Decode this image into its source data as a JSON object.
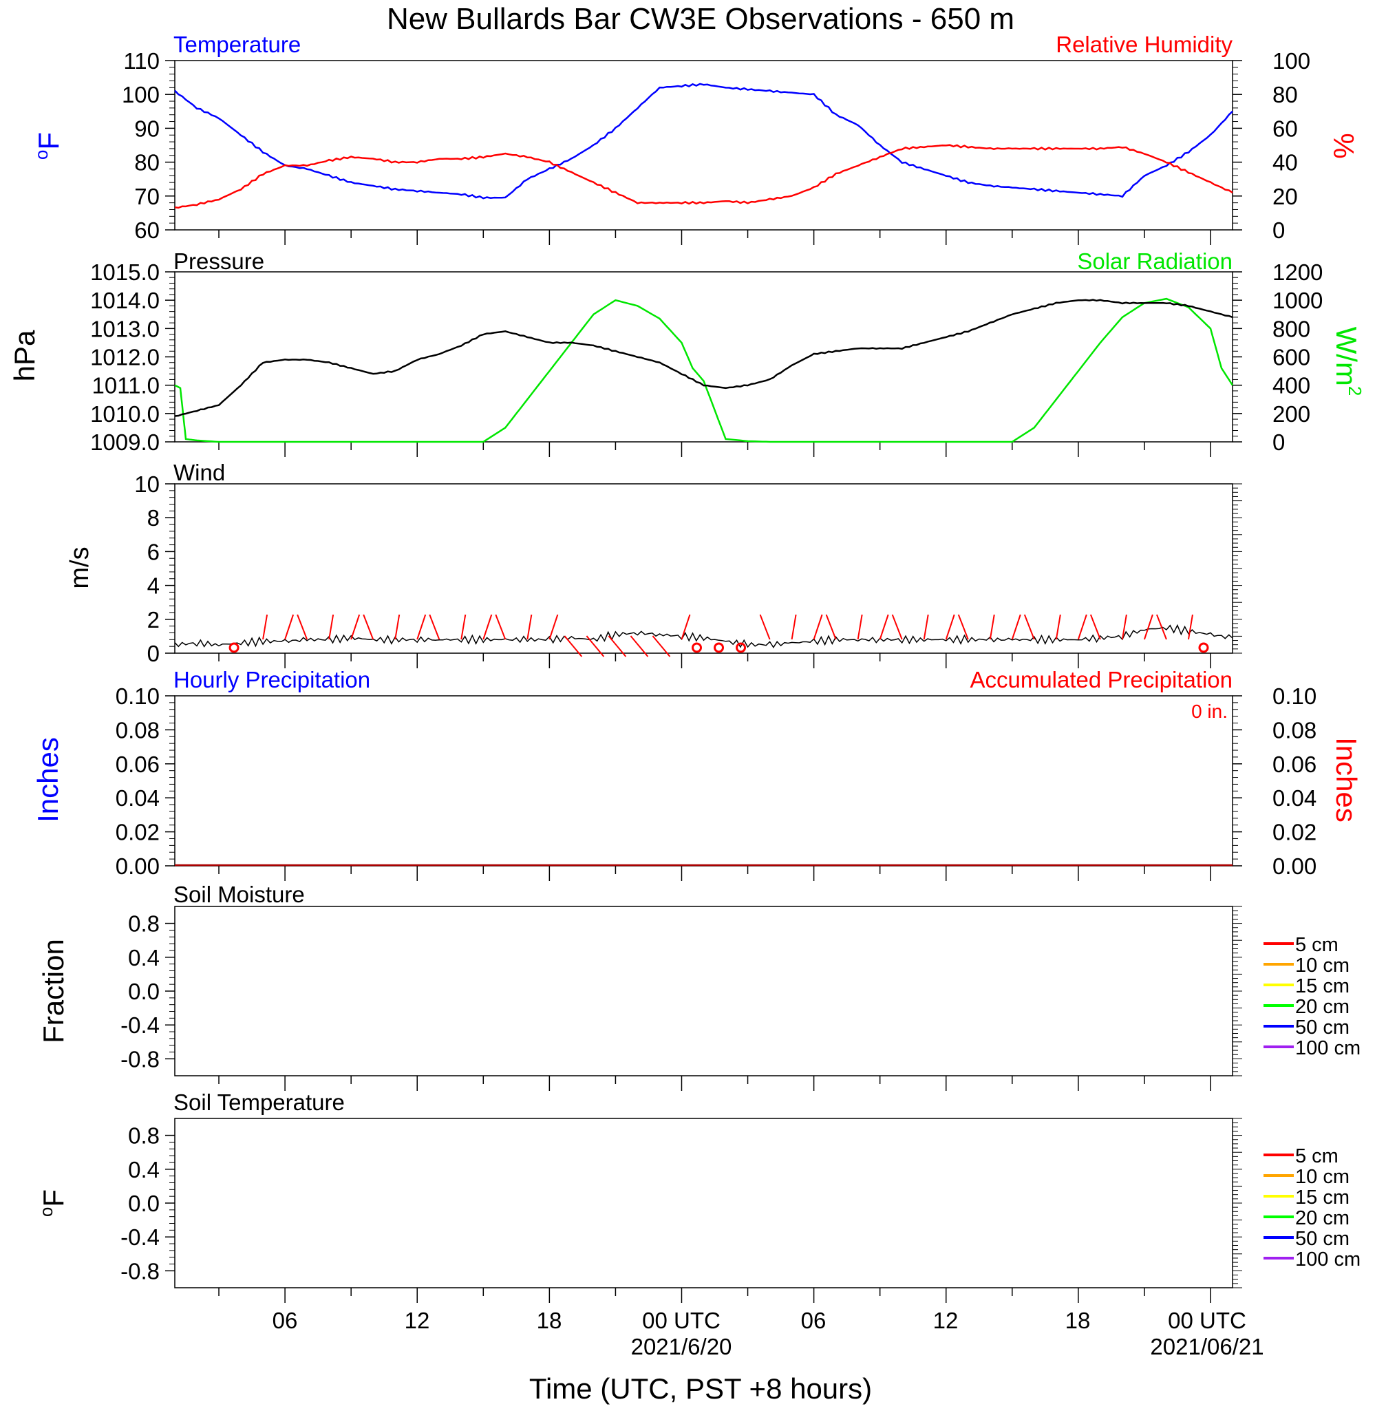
{
  "title": "New Bullards Bar CW3E Observations - 650 m",
  "xlabel": "Time (UTC, PST +8 hours)",
  "x_ticks": [
    "06",
    "12",
    "18",
    "00 UTC",
    "06",
    "12",
    "18",
    "00 UTC"
  ],
  "x_dates": [
    "2021/6/20",
    "2021/06/21"
  ],
  "colors": {
    "temperature": "#0000ff",
    "humidity": "#ff0000",
    "pressure": "#000000",
    "solar": "#00e600",
    "wind": "#000000",
    "barb": "#ff0000",
    "hourly_precip": "#0000ff",
    "accum_precip": "#ff0000"
  },
  "soil_legend": [
    {
      "label": "5 cm",
      "color": "#ff0000"
    },
    {
      "label": "10 cm",
      "color": "#ffa500"
    },
    {
      "label": "15 cm",
      "color": "#ffff00"
    },
    {
      "label": "20 cm",
      "color": "#00ff00"
    },
    {
      "label": "50 cm",
      "color": "#0000ff"
    },
    {
      "label": "100 cm",
      "color": "#a020f0"
    }
  ],
  "panels": {
    "temp": {
      "title_left": "Temperature",
      "title_right": "Relative Humidity",
      "ylabel_left": "oF",
      "ylabel_right": "%",
      "left_ticks": [
        "110",
        "100",
        "90",
        "80",
        "70",
        "60"
      ],
      "right_ticks": [
        "100",
        "80",
        "60",
        "40",
        "20",
        "0"
      ]
    },
    "pressure": {
      "title_left": "Pressure",
      "title_right": "Solar Radiation",
      "ylabel_left": "hPa",
      "ylabel_right": "W/m2",
      "left_ticks": [
        "1015.0",
        "1014.0",
        "1013.0",
        "1012.0",
        "1011.0",
        "1010.0",
        "1009.0"
      ],
      "right_ticks": [
        "1200",
        "1000",
        "800",
        "600",
        "400",
        "200",
        "0"
      ]
    },
    "wind": {
      "title_left": "Wind",
      "ylabel_left": "m/s",
      "left_ticks": [
        "10",
        "8",
        "6",
        "4",
        "2",
        "0"
      ]
    },
    "precip": {
      "title_left": "Hourly Precipitation",
      "title_right": "Accumulated Precipitation",
      "note": "0 in.",
      "ylabel_left": "Inches",
      "ylabel_right": "Inches",
      "left_ticks": [
        "0.10",
        "0.08",
        "0.06",
        "0.04",
        "0.02",
        "0.00"
      ],
      "right_ticks": [
        "0.10",
        "0.08",
        "0.06",
        "0.04",
        "0.02",
        "0.00"
      ]
    },
    "soil_moisture": {
      "title_left": "Soil Moisture",
      "ylabel_left": "Fraction",
      "left_ticks": [
        "0.8",
        "0.4",
        "0.0",
        "-0.4",
        "-0.8"
      ]
    },
    "soil_temp": {
      "title_left": "Soil Temperature",
      "ylabel_left": "oF",
      "left_ticks": [
        "0.8",
        "0.4",
        "0.0",
        "-0.4",
        "-0.8"
      ]
    }
  },
  "chart_data": [
    {
      "type": "line",
      "title": "Temperature",
      "x_unit": "hours since 2021-06-19 01 UTC",
      "ylim_left": [
        60,
        110
      ],
      "ylim_right": [
        0,
        100
      ],
      "series": [
        {
          "name": "Temperature",
          "axis": "left",
          "x": [
            0,
            1,
            2,
            3,
            4,
            5,
            6,
            7,
            8,
            9,
            10,
            11,
            12,
            13,
            14,
            15,
            16,
            17,
            18,
            19,
            20,
            21,
            22,
            23,
            24,
            25,
            26,
            27,
            28,
            29,
            30,
            31,
            32,
            33,
            34,
            35,
            36,
            37,
            38,
            39,
            40,
            41,
            42,
            43,
            44,
            45,
            46,
            47,
            48
          ],
          "y": [
            101,
            96,
            93,
            88,
            83,
            79,
            78,
            76,
            74,
            73,
            72,
            71.5,
            71,
            70.5,
            69.5,
            69.5,
            75,
            78,
            81,
            85,
            90,
            96,
            102,
            102.5,
            103,
            102,
            101.5,
            101,
            100.5,
            100,
            94,
            91,
            85,
            80,
            78,
            76,
            74,
            73,
            72.5,
            72,
            71.5,
            71,
            70.5,
            70,
            76,
            79,
            83,
            88,
            95
          ]
        },
        {
          "name": "Relative Humidity",
          "axis": "right",
          "x": [
            0,
            1,
            2,
            3,
            4,
            5,
            6,
            7,
            8,
            9,
            10,
            11,
            12,
            13,
            14,
            15,
            16,
            17,
            18,
            19,
            20,
            21,
            22,
            23,
            24,
            25,
            26,
            27,
            28,
            29,
            30,
            31,
            32,
            33,
            34,
            35,
            36,
            37,
            38,
            39,
            40,
            41,
            42,
            43,
            44,
            45,
            46,
            47,
            48
          ],
          "y": [
            13,
            15,
            18,
            24,
            33,
            38,
            38,
            41,
            43,
            42,
            40,
            40,
            42,
            42,
            43,
            45,
            43,
            40,
            34,
            28,
            22,
            16,
            16,
            16,
            16,
            17,
            16,
            18,
            20,
            25,
            33,
            38,
            43,
            48,
            49,
            50,
            49,
            48,
            48,
            48,
            48,
            48,
            48,
            49,
            45,
            40,
            34,
            28,
            22
          ]
        }
      ]
    },
    {
      "type": "line",
      "title": "Pressure",
      "ylim_left": [
        1009.0,
        1015.0
      ],
      "ylim_right": [
        0,
        1200
      ],
      "series": [
        {
          "name": "Pressure",
          "axis": "left",
          "x": [
            0,
            1,
            2,
            3,
            4,
            5,
            6,
            7,
            8,
            9,
            10,
            11,
            12,
            13,
            14,
            15,
            16,
            17,
            18,
            19,
            20,
            21,
            22,
            23,
            24,
            25,
            26,
            27,
            28,
            29,
            30,
            31,
            32,
            33,
            34,
            35,
            36,
            37,
            38,
            39,
            40,
            41,
            42,
            43,
            44,
            45,
            46,
            47,
            48
          ],
          "y": [
            1009.9,
            1010.1,
            1010.3,
            1011.0,
            1011.8,
            1011.9,
            1011.9,
            1011.8,
            1011.6,
            1011.4,
            1011.5,
            1011.9,
            1012.1,
            1012.4,
            1012.8,
            1012.9,
            1012.7,
            1012.5,
            1012.5,
            1012.4,
            1012.2,
            1012.0,
            1011.8,
            1011.4,
            1011.0,
            1010.9,
            1011.0,
            1011.2,
            1011.7,
            1012.1,
            1012.2,
            1012.3,
            1012.3,
            1012.3,
            1012.5,
            1012.7,
            1012.9,
            1013.2,
            1013.5,
            1013.7,
            1013.9,
            1014.0,
            1014.0,
            1013.9,
            1013.9,
            1013.9,
            1013.8,
            1013.6,
            1013.4
          ]
        },
        {
          "name": "Solar Radiation",
          "axis": "right",
          "x": [
            0,
            0.25,
            0.5,
            1,
            2,
            3,
            4,
            5,
            6,
            7,
            8,
            9,
            10,
            11,
            12,
            13,
            14,
            15,
            16,
            17,
            18,
            19,
            20,
            21,
            22,
            23,
            23.5,
            24,
            25,
            26,
            27,
            28,
            29,
            30,
            31,
            32,
            33,
            34,
            35,
            36,
            37,
            38,
            39,
            40,
            41,
            42,
            43,
            44,
            45,
            46,
            47,
            47.5,
            48
          ],
          "y": [
            400,
            380,
            20,
            10,
            0,
            0,
            0,
            0,
            0,
            0,
            0,
            0,
            0,
            0,
            0,
            0,
            0,
            100,
            300,
            500,
            700,
            900,
            1000,
            960,
            870,
            700,
            520,
            430,
            20,
            5,
            0,
            0,
            0,
            0,
            0,
            0,
            0,
            0,
            0,
            0,
            0,
            0,
            100,
            300,
            500,
            700,
            880,
            980,
            1010,
            950,
            800,
            520,
            400
          ]
        }
      ]
    },
    {
      "type": "line",
      "title": "Wind",
      "ylim": [
        0,
        10
      ],
      "series": [
        {
          "name": "Wind",
          "x": [
            0,
            1,
            2,
            3,
            4,
            5,
            6,
            7,
            8,
            9,
            10,
            11,
            12,
            13,
            14,
            15,
            16,
            17,
            18,
            19,
            20,
            21,
            22,
            23,
            24,
            25,
            26,
            27,
            28,
            29,
            30,
            31,
            32,
            33,
            34,
            35,
            36,
            37,
            38,
            39,
            40,
            41,
            42,
            43,
            44,
            45,
            46,
            47,
            48
          ],
          "y": [
            0.5,
            0.6,
            0.5,
            0.6,
            0.7,
            0.7,
            0.8,
            0.8,
            0.9,
            0.8,
            0.8,
            0.8,
            0.8,
            0.8,
            0.8,
            0.8,
            0.8,
            0.8,
            0.9,
            0.8,
            1.1,
            1.2,
            1.1,
            1.0,
            0.9,
            0.7,
            0.5,
            0.5,
            0.6,
            0.7,
            0.8,
            0.8,
            0.8,
            0.8,
            0.8,
            0.8,
            0.8,
            0.8,
            0.8,
            0.8,
            0.8,
            0.8,
            0.9,
            1.0,
            1.4,
            1.5,
            1.3,
            1.1,
            0.9
          ]
        }
      ]
    },
    {
      "type": "line",
      "title": "Hourly Precipitation",
      "ylim": [
        0,
        0.1
      ],
      "series": [
        {
          "name": "Hourly Precipitation",
          "x": [
            0,
            48
          ],
          "y": [
            0,
            0
          ]
        },
        {
          "name": "Accumulated Precipitation",
          "x": [
            0,
            48
          ],
          "y": [
            0,
            0
          ]
        }
      ]
    },
    {
      "type": "line",
      "title": "Soil Moisture",
      "ylim": [
        -1,
        1
      ],
      "series": []
    },
    {
      "type": "line",
      "title": "Soil Temperature",
      "ylim": [
        -1,
        1
      ],
      "series": []
    }
  ]
}
